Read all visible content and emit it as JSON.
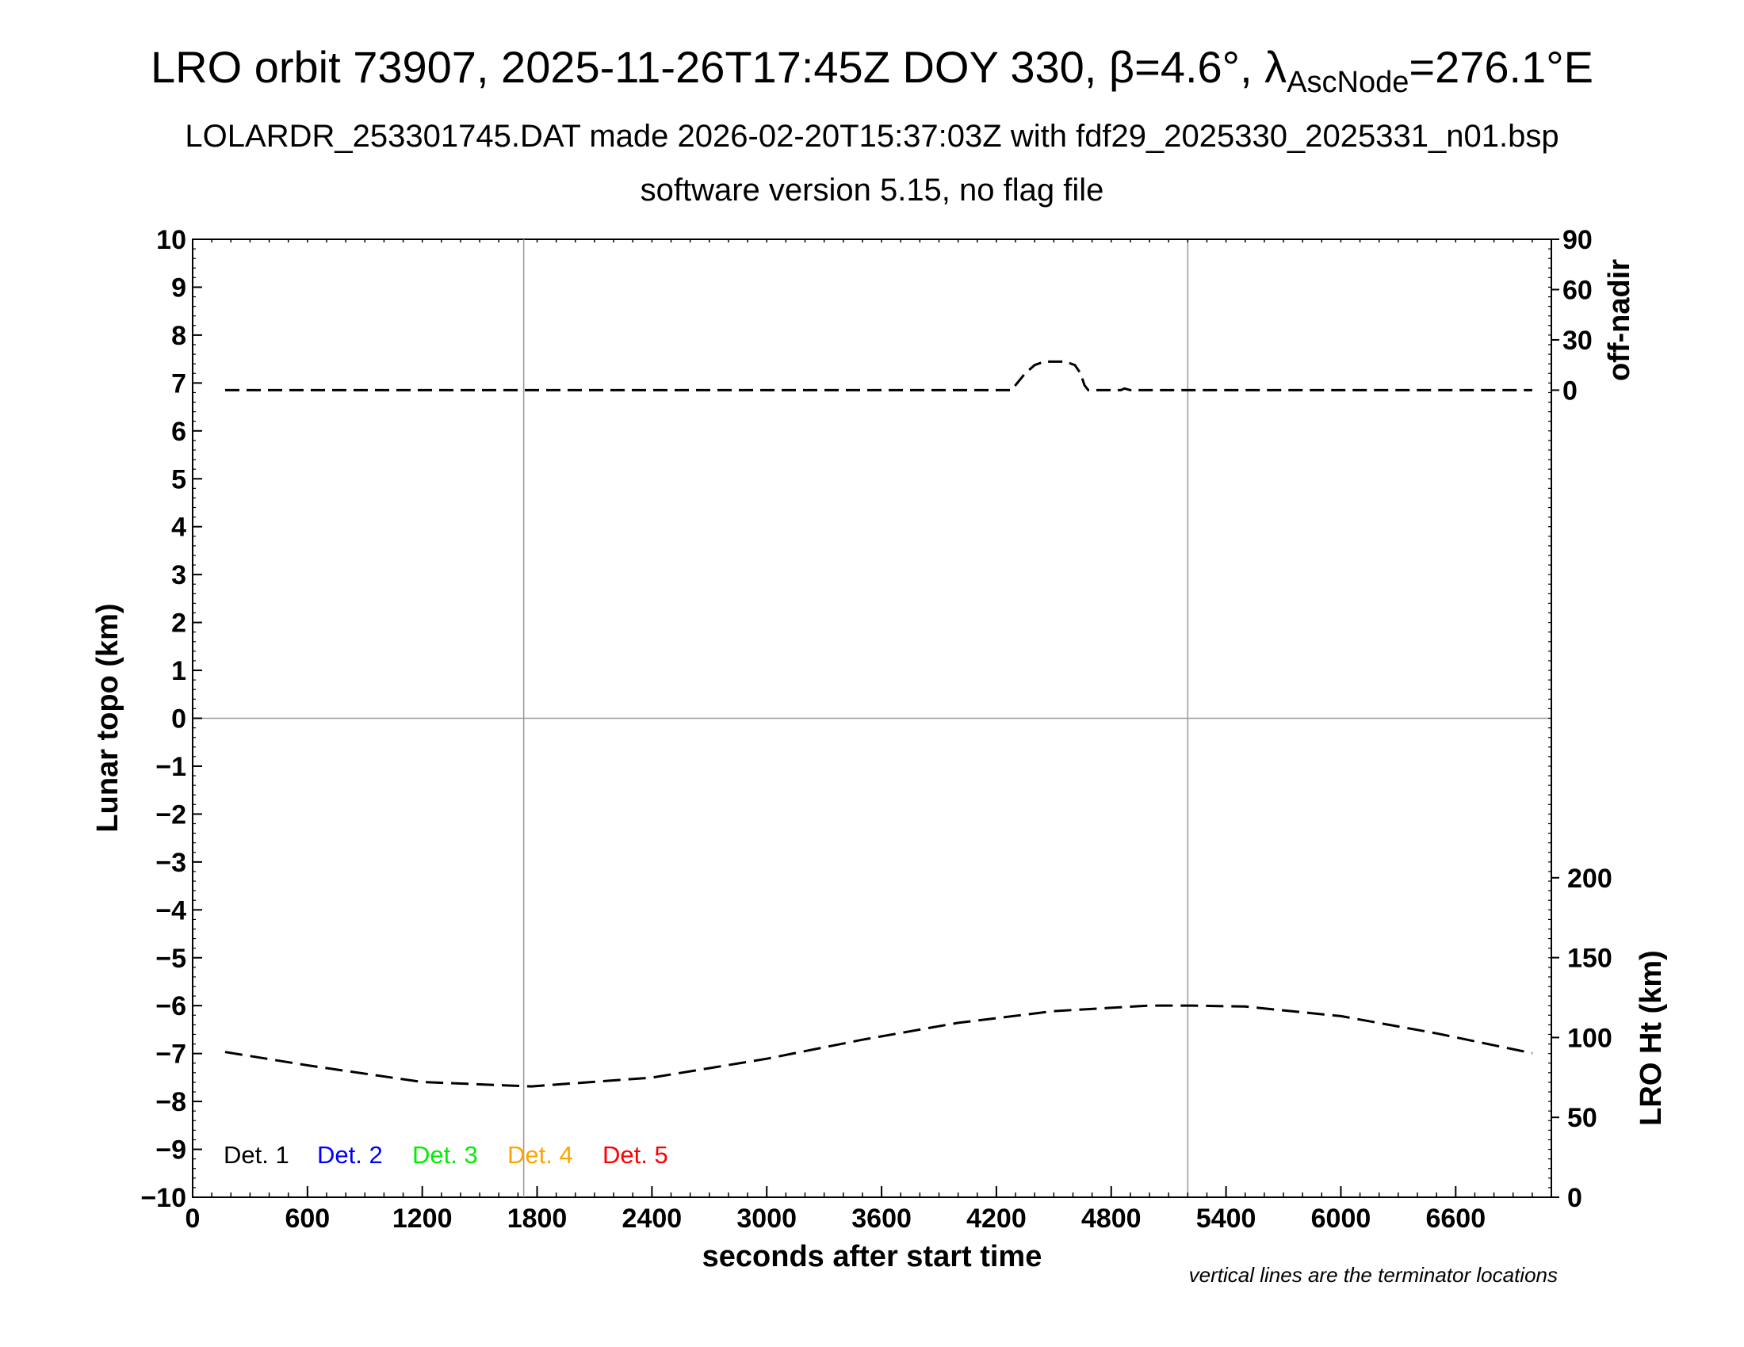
{
  "header": {
    "title_main": "LRO orbit 73907, 2025-11-26T17:45Z DOY 330, β=4.6°, λ",
    "title_sub": "AscNode",
    "title_end": "=276.1°E",
    "subtitle1": "LOLARDR_253301745.DAT made 2026-02-20T15:37:03Z with fdf29_2025330_2025331_n01.bsp",
    "subtitle2": "software version 5.15, no flag file"
  },
  "note": "vertical lines are the terminator locations",
  "chart_data": {
    "type": "line",
    "xlabel": "seconds after start time",
    "ylabel_left": "Lunar topo (km)",
    "ylabel_right_top": "off-nadir",
    "ylabel_right_bottom": "LRO Ht (km)",
    "xlim": [
      0,
      7100
    ],
    "ylim": [
      -10,
      10
    ],
    "x_ticks": [
      "0",
      "600",
      "1200",
      "1800",
      "2400",
      "3000",
      "3600",
      "4200",
      "4800",
      "5400",
      "6000",
      "6600"
    ],
    "y_ticks": [
      "10",
      "9",
      "8",
      "7",
      "6",
      "5",
      "4",
      "3",
      "2",
      "1",
      "0",
      "−1",
      "−2",
      "−3",
      "−4",
      "−5",
      "−6",
      "−7",
      "−8",
      "−9",
      "−10"
    ],
    "right_ticks_off_nadir": [
      "90",
      "60",
      "30",
      "0"
    ],
    "right_ticks_ht": [
      "200",
      "150",
      "100",
      "50",
      "0"
    ],
    "terminator_x": [
      1730,
      5200
    ],
    "legend": [
      {
        "label": "Det. 1",
        "color": "#000000"
      },
      {
        "label": "Det. 2",
        "color": "#0000ff"
      },
      {
        "label": "Det. 3",
        "color": "#00ee00"
      },
      {
        "label": "Det. 4",
        "color": "#ffa500"
      },
      {
        "label": "Det. 5",
        "color": "#ff0000"
      }
    ],
    "series": [
      {
        "label": "off-nadir",
        "axis": "off-nadir (deg)",
        "x": [
          170,
          4280,
          4300,
          4350,
          4400,
          4450,
          4500,
          4560,
          4610,
          4640,
          4660,
          4680,
          4760,
          4850,
          4870,
          4900,
          7000
        ],
        "y": [
          0,
          0,
          3,
          10,
          15,
          17,
          17,
          17,
          15,
          10,
          3,
          0,
          0,
          0,
          1,
          0,
          0
        ]
      },
      {
        "label": "LRO Ht",
        "axis": "LRO Ht (km)",
        "x": [
          170,
          600,
          1200,
          1770,
          2400,
          3000,
          3500,
          4000,
          4500,
          5000,
          5220,
          5500,
          6000,
          6500,
          7000
        ],
        "y": [
          90.9,
          82.6,
          72.1,
          69.4,
          74.9,
          86.7,
          98.6,
          109.2,
          116.5,
          120.0,
          120.0,
          119.4,
          113.4,
          102.6,
          90.2
        ]
      }
    ]
  }
}
